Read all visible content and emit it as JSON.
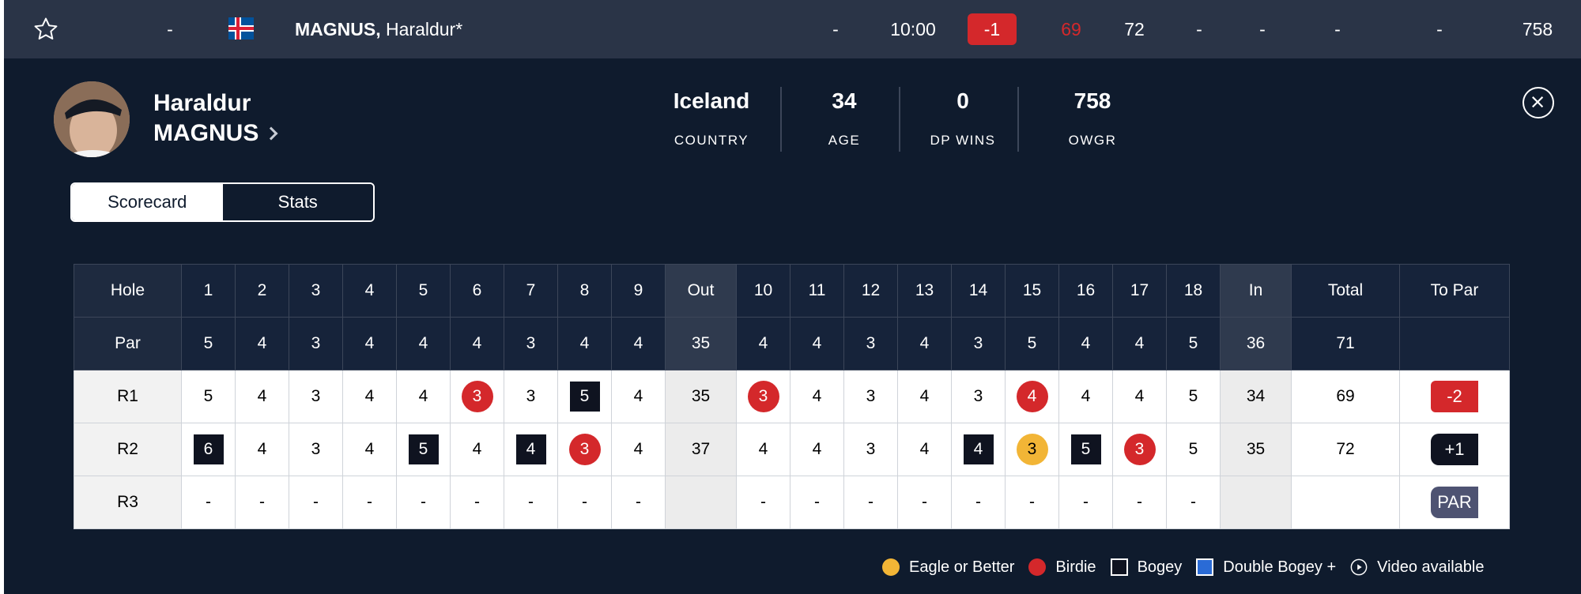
{
  "leaderboard_row": {
    "position": "-",
    "last_name": "MAGNUS,",
    "first_name": "Haraldur*",
    "thru": "-",
    "tee_time": "10:00",
    "to_par": "-1",
    "r1": "69",
    "r2": "72",
    "r3": "-",
    "r4": "-",
    "today": "-",
    "total": "-",
    "owgr": "758",
    "to_par_color": "#d4282b",
    "r1_color": "#d4282b"
  },
  "player": {
    "first_name": "Haraldur",
    "last_name": "MAGNUS",
    "stats": [
      {
        "value": "Iceland",
        "label": "COUNTRY"
      },
      {
        "value": "34",
        "label": "AGE"
      },
      {
        "value": "0",
        "label": "DP WINS"
      },
      {
        "value": "758",
        "label": "OWGR"
      }
    ]
  },
  "tabs": [
    {
      "label": "Scorecard",
      "active": true
    },
    {
      "label": "Stats",
      "active": false
    }
  ],
  "scorecard": {
    "headers": [
      "Hole",
      "1",
      "2",
      "3",
      "4",
      "5",
      "6",
      "7",
      "8",
      "9",
      "Out",
      "10",
      "11",
      "12",
      "13",
      "14",
      "15",
      "16",
      "17",
      "18",
      "In",
      "Total",
      "To Par"
    ],
    "par": [
      "Par",
      "5",
      "4",
      "3",
      "4",
      "4",
      "4",
      "3",
      "4",
      "4",
      "35",
      "4",
      "4",
      "3",
      "4",
      "3",
      "5",
      "4",
      "4",
      "5",
      "36",
      "71",
      ""
    ],
    "rounds": [
      {
        "label": "R1",
        "scores": [
          "5",
          "4",
          "3",
          "4",
          "4",
          "3",
          "3",
          "5",
          "4",
          "35",
          "3",
          "4",
          "3",
          "4",
          "3",
          "4",
          "4",
          "4",
          "5",
          "34",
          "69"
        ],
        "marks": [
          "",
          "",
          "",
          "",
          "",
          "birdie",
          "",
          "bogey",
          "",
          "",
          "birdie",
          "",
          "",
          "",
          "",
          "birdie",
          "",
          "",
          "",
          "",
          ""
        ],
        "to_par": "-2",
        "to_par_type": "under"
      },
      {
        "label": "R2",
        "scores": [
          "6",
          "4",
          "3",
          "4",
          "5",
          "4",
          "4",
          "3",
          "4",
          "37",
          "4",
          "4",
          "3",
          "4",
          "4",
          "3",
          "5",
          "3",
          "5",
          "35",
          "72"
        ],
        "marks": [
          "bogey",
          "",
          "",
          "",
          "bogey",
          "",
          "bogey",
          "birdie",
          "",
          "",
          "",
          "",
          "",
          "",
          "bogey",
          "eagle",
          "bogey",
          "birdie",
          "",
          "",
          ""
        ],
        "to_par": "+1",
        "to_par_type": "over"
      },
      {
        "label": "R3",
        "scores": [
          "-",
          "-",
          "-",
          "-",
          "-",
          "-",
          "-",
          "-",
          "-",
          "",
          "-",
          "-",
          "-",
          "-",
          "-",
          "-",
          "-",
          "-",
          "-",
          "",
          ""
        ],
        "marks": [
          "",
          "",
          "",
          "",
          "",
          "",
          "",
          "",
          "",
          "",
          "",
          "",
          "",
          "",
          "",
          "",
          "",
          "",
          "",
          "",
          ""
        ],
        "to_par": "PAR",
        "to_par_type": "even"
      }
    ]
  },
  "legend": [
    {
      "label": "Eagle or Better",
      "icon": "eagle-circle-icon"
    },
    {
      "label": "Birdie",
      "icon": "birdie-circle-icon"
    },
    {
      "label": "Bogey",
      "icon": "bogey-square-icon"
    },
    {
      "label": "Double Bogey +",
      "icon": "double-bogey-square-icon"
    },
    {
      "label": "Video available",
      "icon": "play-circle-icon"
    }
  ],
  "colors": {
    "background": "#0f1b2d",
    "top_row": "#2a3447",
    "birdie": "#d4282b",
    "eagle": "#f2b536",
    "bogey": "#0f1320",
    "double_bogey": "#2a6bd6"
  }
}
